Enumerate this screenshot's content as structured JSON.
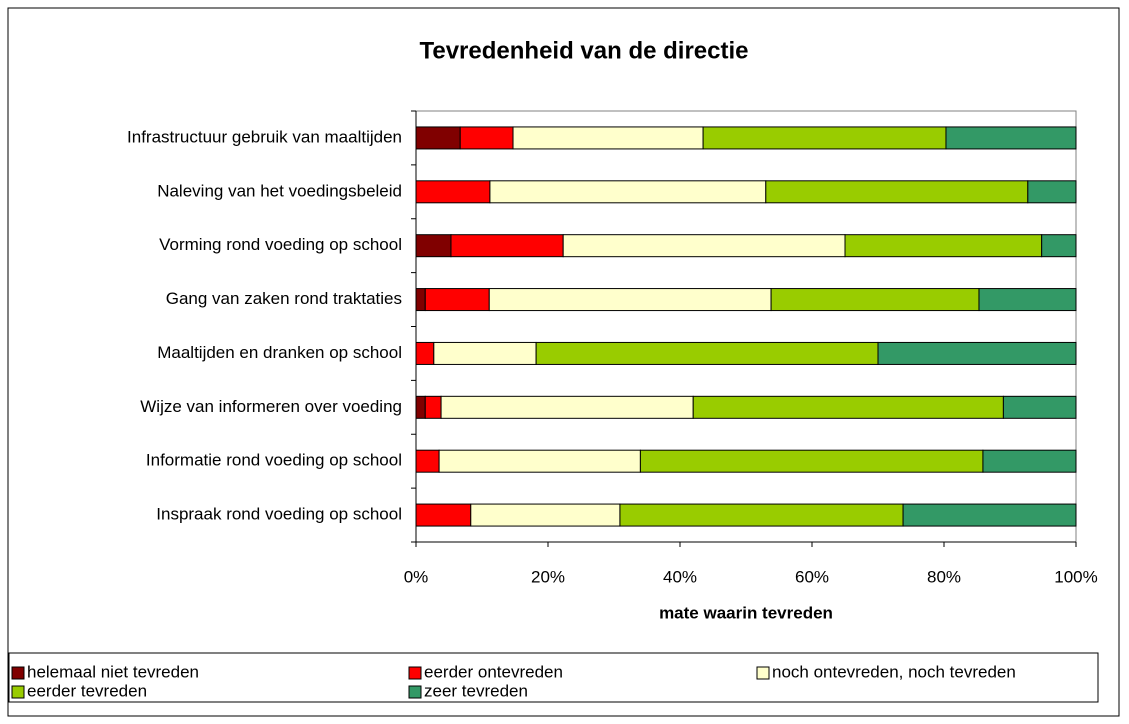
{
  "chart_data": {
    "type": "stacked-barh",
    "title": "Tevredenheid van de directie",
    "x_label": "mate waarin tevreden",
    "categories": [
      "Infrastructuur gebruik van maaltijden",
      "Naleving van het voedingsbeleid",
      "Vorming rond voeding op school",
      "Gang van zaken rond traktaties",
      "Maaltijden en dranken op school",
      "Wijze van informeren over voeding",
      "Informatie rond voeding op school",
      "Inspraak rond voeding op school"
    ],
    "series": [
      {
        "name": "helemaal niet tevreden",
        "color": "#800000",
        "values": [
          6.7,
          0,
          5.3,
          1.4,
          0,
          1.4,
          0,
          0
        ]
      },
      {
        "name": "eerder ontevreden",
        "color": "#ff0000",
        "values": [
          8.0,
          11.2,
          17.0,
          9.7,
          2.7,
          2.4,
          3.5,
          8.3
        ]
      },
      {
        "name": "noch ontevreden, noch tevreden",
        "color": "#ffffcc",
        "values": [
          28.8,
          41.8,
          42.7,
          42.7,
          15.5,
          38.2,
          30.5,
          22.6
        ]
      },
      {
        "name": "eerder tevreden",
        "color": "#99cc00",
        "values": [
          36.8,
          39.7,
          29.8,
          31.5,
          51.8,
          47.0,
          51.9,
          42.9
        ]
      },
      {
        "name": "zeer tevreden",
        "color": "#339966",
        "values": [
          19.7,
          7.3,
          5.2,
          14.7,
          30.0,
          11.0,
          14.1,
          26.2
        ]
      }
    ],
    "xlim": [
      0,
      100
    ],
    "xticks": [
      {
        "value": 0,
        "label": "0%"
      },
      {
        "value": 20,
        "label": "20%"
      },
      {
        "value": 40,
        "label": "40%"
      },
      {
        "value": 60,
        "label": "60%"
      },
      {
        "value": 80,
        "label": "80%"
      },
      {
        "value": 100,
        "label": "100%"
      }
    ],
    "legend": "bottom"
  }
}
